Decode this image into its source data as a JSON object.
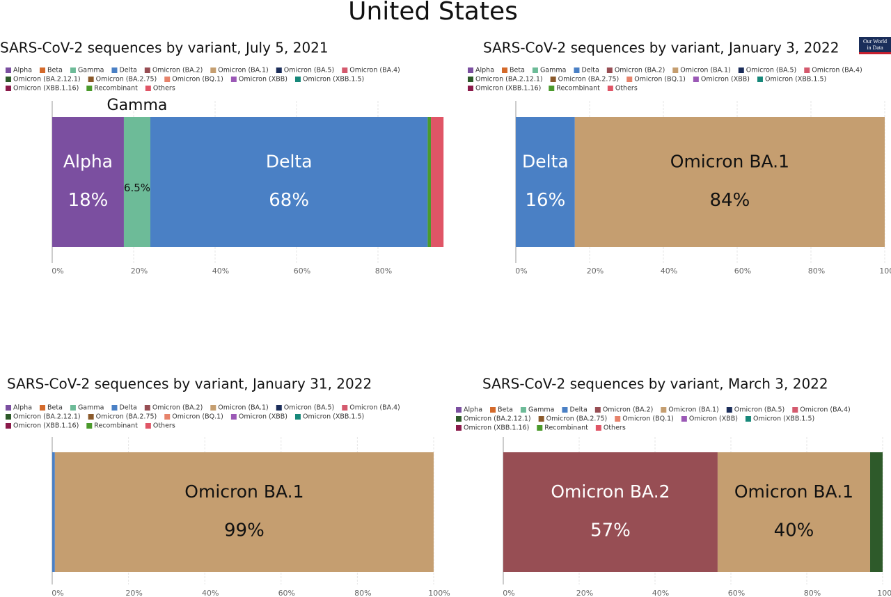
{
  "title": "United States",
  "logo": [
    "Our World",
    "in Data"
  ],
  "chart_data": [
    {
      "type": "bar",
      "orientation": "horizontal",
      "stacked": true,
      "title": "SARS-CoV-2 sequences by variant, July 5, 2021",
      "categories": [
        null
      ],
      "xlim": [
        0,
        100
      ],
      "xticks": [
        {
          "value": 0,
          "label": "0%"
        },
        {
          "value": 20,
          "label": "20%"
        },
        {
          "value": 40,
          "label": "40%"
        },
        {
          "value": 60,
          "label": "60%"
        },
        {
          "value": 80,
          "label": "80%"
        }
      ],
      "grid": true,
      "series": [
        {
          "name": "Alpha",
          "color": "#7b4fa0",
          "values": [
            17.6
          ],
          "label": "Alpha",
          "value_labels": [
            "18%"
          ]
        },
        {
          "name": "Beta",
          "color": "#d46a2b",
          "values": [
            0
          ]
        },
        {
          "name": "Gamma",
          "color": "#6dbb98",
          "values": [
            6.5
          ],
          "label": "Gamma",
          "value_labels": [
            "6.5%"
          ]
        },
        {
          "name": "Delta",
          "color": "#4a80c5",
          "values": [
            68.1
          ],
          "label": "Delta",
          "value_labels": [
            "68%"
          ]
        },
        {
          "name": "Omicron (BA.2)",
          "color": "#974e54",
          "values": [
            0
          ]
        },
        {
          "name": "Omicron (BA.1)",
          "color": "#c59e70",
          "values": [
            0
          ]
        },
        {
          "name": "Omicron (BA.5)",
          "color": "#1b2d5a",
          "values": [
            0
          ]
        },
        {
          "name": "Omicron (BA.4)",
          "color": "#d45a6e",
          "values": [
            0
          ]
        },
        {
          "name": "Omicron (BA.2.12.1)",
          "color": "#2e5a2a",
          "values": [
            0
          ]
        },
        {
          "name": "Omicron (BA.2.75)",
          "color": "#8b5a2b",
          "values": [
            0
          ]
        },
        {
          "name": "Omicron (BQ.1)",
          "color": "#e7836b",
          "values": [
            0
          ]
        },
        {
          "name": "Omicron (XBB)",
          "color": "#9b59b6",
          "values": [
            0
          ]
        },
        {
          "name": "Omicron (XBB.1.5)",
          "color": "#17887a",
          "values": [
            0
          ]
        },
        {
          "name": "Omicron (XBB.1.16)",
          "color": "#8b1a4a",
          "values": [
            0
          ]
        },
        {
          "name": "Recombinant",
          "color": "#4b9a2c",
          "values": [
            0.8
          ]
        },
        {
          "name": "Others",
          "color": "#e05566",
          "values": [
            3.1
          ]
        }
      ]
    },
    {
      "type": "bar",
      "orientation": "horizontal",
      "stacked": true,
      "title": "SARS-CoV-2 sequences by variant, January 3, 2022",
      "categories": [
        null
      ],
      "xlim": [
        0,
        100
      ],
      "xticks": [
        {
          "value": 0,
          "label": "0%"
        },
        {
          "value": 20,
          "label": "20%"
        },
        {
          "value": 40,
          "label": "40%"
        },
        {
          "value": 60,
          "label": "60%"
        },
        {
          "value": 80,
          "label": "80%"
        },
        {
          "value": 100,
          "label": "100%"
        }
      ],
      "grid": true,
      "series": [
        {
          "name": "Alpha",
          "color": "#7b4fa0",
          "values": [
            0
          ]
        },
        {
          "name": "Beta",
          "color": "#d46a2b",
          "values": [
            0
          ]
        },
        {
          "name": "Gamma",
          "color": "#6dbb98",
          "values": [
            0
          ]
        },
        {
          "name": "Delta",
          "color": "#4a80c5",
          "values": [
            16
          ],
          "label": "Delta",
          "value_labels": [
            "16%"
          ]
        },
        {
          "name": "Omicron (BA.2)",
          "color": "#974e54",
          "values": [
            0
          ]
        },
        {
          "name": "Omicron (BA.1)",
          "color": "#c59e70",
          "values": [
            84
          ],
          "label": "Omicron BA.1",
          "value_labels": [
            "84%"
          ]
        },
        {
          "name": "Omicron (BA.5)",
          "color": "#1b2d5a",
          "values": [
            0
          ]
        },
        {
          "name": "Omicron (BA.4)",
          "color": "#d45a6e",
          "values": [
            0
          ]
        },
        {
          "name": "Omicron (BA.2.12.1)",
          "color": "#2e5a2a",
          "values": [
            0
          ]
        },
        {
          "name": "Omicron (BA.2.75)",
          "color": "#8b5a2b",
          "values": [
            0
          ]
        },
        {
          "name": "Omicron (BQ.1)",
          "color": "#e7836b",
          "values": [
            0
          ]
        },
        {
          "name": "Omicron (XBB)",
          "color": "#9b59b6",
          "values": [
            0
          ]
        },
        {
          "name": "Omicron (XBB.1.5)",
          "color": "#17887a",
          "values": [
            0
          ]
        },
        {
          "name": "Omicron (XBB.1.16)",
          "color": "#8b1a4a",
          "values": [
            0
          ]
        },
        {
          "name": "Recombinant",
          "color": "#4b9a2c",
          "values": [
            0
          ]
        },
        {
          "name": "Others",
          "color": "#e05566",
          "values": [
            0
          ]
        }
      ]
    },
    {
      "type": "bar",
      "orientation": "horizontal",
      "stacked": true,
      "title": "SARS-CoV-2 sequences by variant, January 31, 2022",
      "categories": [
        null
      ],
      "xlim": [
        0,
        100
      ],
      "xticks": [
        {
          "value": 0,
          "label": "0%"
        },
        {
          "value": 20,
          "label": "20%"
        },
        {
          "value": 40,
          "label": "40%"
        },
        {
          "value": 60,
          "label": "60%"
        },
        {
          "value": 80,
          "label": "80%"
        },
        {
          "value": 100,
          "label": "100%"
        }
      ],
      "grid": true,
      "series": [
        {
          "name": "Alpha",
          "color": "#7b4fa0",
          "values": [
            0
          ]
        },
        {
          "name": "Beta",
          "color": "#d46a2b",
          "values": [
            0
          ]
        },
        {
          "name": "Gamma",
          "color": "#6dbb98",
          "values": [
            0
          ]
        },
        {
          "name": "Delta",
          "color": "#4a80c5",
          "values": [
            0.7
          ]
        },
        {
          "name": "Omicron (BA.2)",
          "color": "#974e54",
          "values": [
            0
          ]
        },
        {
          "name": "Omicron (BA.1)",
          "color": "#c59e70",
          "values": [
            99.3
          ],
          "label": "Omicron BA.1",
          "value_labels": [
            "99%"
          ]
        },
        {
          "name": "Omicron (BA.5)",
          "color": "#1b2d5a",
          "values": [
            0
          ]
        },
        {
          "name": "Omicron (BA.4)",
          "color": "#d45a6e",
          "values": [
            0
          ]
        },
        {
          "name": "Omicron (BA.2.12.1)",
          "color": "#2e5a2a",
          "values": [
            0
          ]
        },
        {
          "name": "Omicron (BA.2.75)",
          "color": "#8b5a2b",
          "values": [
            0
          ]
        },
        {
          "name": "Omicron (BQ.1)",
          "color": "#e7836b",
          "values": [
            0
          ]
        },
        {
          "name": "Omicron (XBB)",
          "color": "#9b59b6",
          "values": [
            0
          ]
        },
        {
          "name": "Omicron (XBB.1.5)",
          "color": "#17887a",
          "values": [
            0
          ]
        },
        {
          "name": "Omicron (XBB.1.16)",
          "color": "#8b1a4a",
          "values": [
            0
          ]
        },
        {
          "name": "Recombinant",
          "color": "#4b9a2c",
          "values": [
            0
          ]
        },
        {
          "name": "Others",
          "color": "#e05566",
          "values": [
            0
          ]
        }
      ]
    },
    {
      "type": "bar",
      "orientation": "horizontal",
      "stacked": true,
      "title": "SARS-CoV-2 sequences by variant, March 3, 2022",
      "categories": [
        null
      ],
      "xlim": [
        0,
        100
      ],
      "xticks": [
        {
          "value": 0,
          "label": "0%"
        },
        {
          "value": 20,
          "label": "20%"
        },
        {
          "value": 40,
          "label": "40%"
        },
        {
          "value": 60,
          "label": "60%"
        },
        {
          "value": 80,
          "label": "80%"
        },
        {
          "value": 100,
          "label": "100%"
        }
      ],
      "grid": true,
      "series": [
        {
          "name": "Alpha",
          "color": "#7b4fa0",
          "values": [
            0
          ]
        },
        {
          "name": "Beta",
          "color": "#d46a2b",
          "values": [
            0
          ]
        },
        {
          "name": "Gamma",
          "color": "#6dbb98",
          "values": [
            0
          ]
        },
        {
          "name": "Delta",
          "color": "#4a80c5",
          "values": [
            0
          ]
        },
        {
          "name": "Omicron (BA.2)",
          "color": "#974e54",
          "values": [
            56.5
          ],
          "label": "Omicron BA.2",
          "value_labels": [
            "57%"
          ]
        },
        {
          "name": "Omicron (BA.1)",
          "color": "#c59e70",
          "values": [
            40.2
          ],
          "label": "Omicron BA.1",
          "value_labels": [
            "40%"
          ]
        },
        {
          "name": "Omicron (BA.5)",
          "color": "#1b2d5a",
          "values": [
            0
          ]
        },
        {
          "name": "Omicron (BA.4)",
          "color": "#d45a6e",
          "values": [
            0
          ]
        },
        {
          "name": "Omicron (BA.2.12.1)",
          "color": "#2e5a2a",
          "values": [
            3.3
          ]
        },
        {
          "name": "Omicron (BA.2.75)",
          "color": "#8b5a2b",
          "values": [
            0
          ]
        },
        {
          "name": "Omicron (BQ.1)",
          "color": "#e7836b",
          "values": [
            0
          ]
        },
        {
          "name": "Omicron (XBB)",
          "color": "#9b59b6",
          "values": [
            0
          ]
        },
        {
          "name": "Omicron (XBB.1.5)",
          "color": "#17887a",
          "values": [
            0
          ]
        },
        {
          "name": "Omicron (XBB.1.16)",
          "color": "#8b1a4a",
          "values": [
            0
          ]
        },
        {
          "name": "Recombinant",
          "color": "#4b9a2c",
          "values": [
            0
          ]
        },
        {
          "name": "Others",
          "color": "#e05566",
          "values": [
            0
          ]
        }
      ]
    }
  ]
}
